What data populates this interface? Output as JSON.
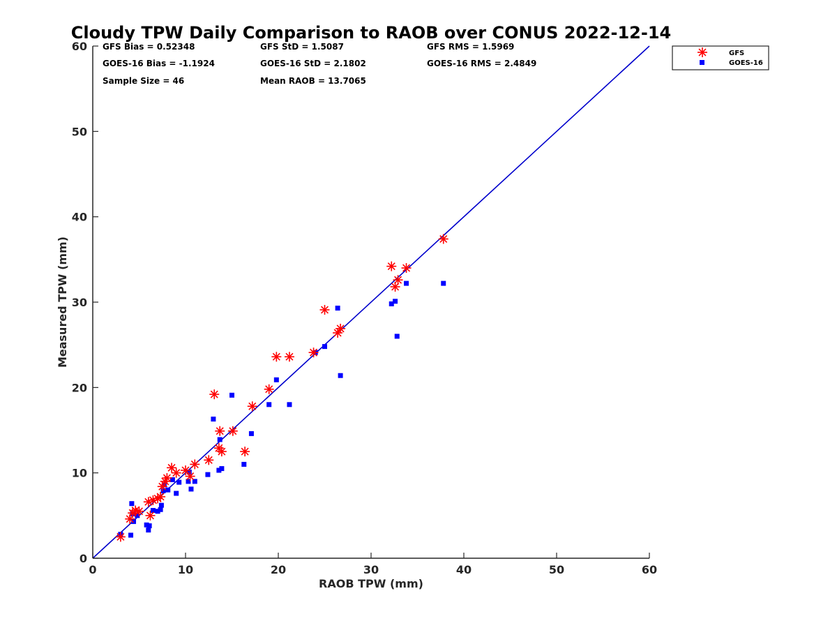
{
  "chart_data": {
    "type": "scatter",
    "title": "Cloudy TPW Daily Comparison to RAOB over CONUS 2022-12-14",
    "xlabel": "RAOB TPW (mm)",
    "ylabel": "Measured TPW (mm)",
    "xlim": [
      0,
      60
    ],
    "ylim": [
      0,
      60
    ],
    "xticks": [
      "0",
      "10",
      "20",
      "30",
      "40",
      "50",
      "60"
    ],
    "yticks": [
      "0",
      "10",
      "20",
      "30",
      "40",
      "50",
      "60"
    ],
    "grid": false,
    "legend_position": "top-right (outside plot)",
    "reference_line": {
      "type": "1:1",
      "color": "#0000cc"
    },
    "stats": {
      "gfs_bias": "GFS Bias = 0.52348",
      "goes_bias": "GOES-16 Bias = -1.1924",
      "sample_size": "Sample Size = 46",
      "gfs_std": "GFS StD = 1.5087",
      "goes_std": "GOES-16 StD = 2.1802",
      "mean_raob": "Mean RAOB = 13.7065",
      "gfs_rms": "GFS RMS = 1.5969",
      "goes_rms": "GOES-16 RMS = 2.4849"
    },
    "series": [
      {
        "name": "GFS",
        "marker": "asterisk",
        "color": "#ff0000",
        "points": [
          [
            3.0,
            2.5
          ],
          [
            4.0,
            4.6
          ],
          [
            4.3,
            5.3
          ],
          [
            4.6,
            5.6
          ],
          [
            5.0,
            5.5
          ],
          [
            6.0,
            6.6
          ],
          [
            6.2,
            5.0
          ],
          [
            6.5,
            6.8
          ],
          [
            7.0,
            7.0
          ],
          [
            7.3,
            7.2
          ],
          [
            7.5,
            8.4
          ],
          [
            7.8,
            9.0
          ],
          [
            8.0,
            9.4
          ],
          [
            8.5,
            10.6
          ],
          [
            9.0,
            10.0
          ],
          [
            10.0,
            10.3
          ],
          [
            10.5,
            9.6
          ],
          [
            11.0,
            11.0
          ],
          [
            12.5,
            11.5
          ],
          [
            13.1,
            19.2
          ],
          [
            13.7,
            14.9
          ],
          [
            13.6,
            12.9
          ],
          [
            13.9,
            12.5
          ],
          [
            15.1,
            14.9
          ],
          [
            16.4,
            12.5
          ],
          [
            17.2,
            17.8
          ],
          [
            19.0,
            19.8
          ],
          [
            19.8,
            23.6
          ],
          [
            21.2,
            23.6
          ],
          [
            23.8,
            24.1
          ],
          [
            25.0,
            29.1
          ],
          [
            26.4,
            26.4
          ],
          [
            26.7,
            26.9
          ],
          [
            32.2,
            34.2
          ],
          [
            32.6,
            31.8
          ],
          [
            32.9,
            32.6
          ],
          [
            33.8,
            34.0
          ],
          [
            37.8,
            37.4
          ]
        ]
      },
      {
        "name": "GOES-16",
        "marker": "square",
        "color": "#0000ff",
        "points": [
          [
            3.0,
            2.8
          ],
          [
            4.1,
            2.7
          ],
          [
            4.2,
            6.4
          ],
          [
            4.3,
            5.2
          ],
          [
            4.4,
            4.3
          ],
          [
            4.8,
            5.0
          ],
          [
            5.8,
            3.9
          ],
          [
            6.0,
            3.3
          ],
          [
            6.1,
            3.8
          ],
          [
            6.5,
            5.6
          ],
          [
            7.0,
            5.5
          ],
          [
            7.3,
            5.7
          ],
          [
            7.4,
            6.2
          ],
          [
            7.6,
            7.9
          ],
          [
            7.7,
            8.6
          ],
          [
            8.1,
            8.0
          ],
          [
            8.6,
            9.2
          ],
          [
            9.0,
            7.6
          ],
          [
            9.3,
            8.9
          ],
          [
            10.3,
            9.0
          ],
          [
            10.4,
            10.1
          ],
          [
            10.6,
            8.1
          ],
          [
            11.0,
            9.0
          ],
          [
            12.4,
            9.8
          ],
          [
            13.0,
            16.3
          ],
          [
            13.6,
            10.3
          ],
          [
            13.7,
            13.9
          ],
          [
            13.9,
            10.5
          ],
          [
            15.0,
            19.1
          ],
          [
            16.3,
            11.0
          ],
          [
            17.1,
            14.6
          ],
          [
            19.0,
            18.0
          ],
          [
            19.8,
            20.9
          ],
          [
            21.2,
            18.0
          ],
          [
            24.0,
            24.1
          ],
          [
            25.0,
            24.8
          ],
          [
            26.4,
            29.3
          ],
          [
            26.7,
            21.4
          ],
          [
            32.2,
            29.8
          ],
          [
            32.6,
            30.1
          ],
          [
            32.8,
            26.0
          ],
          [
            33.8,
            32.2
          ],
          [
            37.8,
            32.2
          ]
        ]
      }
    ]
  },
  "legend": {
    "gfs_label": "GFS",
    "goes_label": "GOES-16"
  },
  "colors": {
    "gfs": "#ff0000",
    "goes": "#0000ff",
    "reference_line": "#0000cc",
    "axes": "#262626"
  }
}
